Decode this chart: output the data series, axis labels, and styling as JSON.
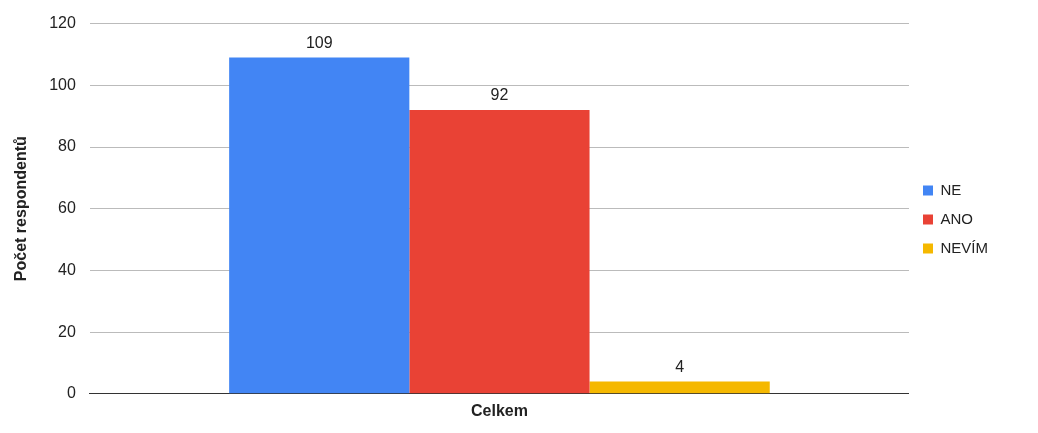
{
  "chart_data": {
    "type": "bar",
    "ylabel": "Počet respondentů",
    "categories": [
      "Celkem"
    ],
    "series": [
      {
        "name": "NE",
        "color": "#4285f4",
        "values": [
          109
        ]
      },
      {
        "name": "ANO",
        "color": "#e94235",
        "values": [
          92
        ]
      },
      {
        "name": "NEVÍM",
        "color": "#f5b800",
        "values": [
          4
        ]
      }
    ],
    "ylim": [
      0,
      120
    ],
    "yticks": [
      0,
      20,
      40,
      60,
      80,
      100,
      120
    ],
    "grid": "y",
    "legend": "right",
    "data_labels": true
  }
}
